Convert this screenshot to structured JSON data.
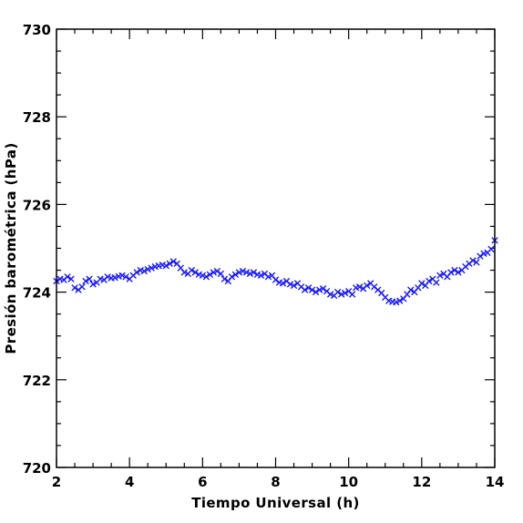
{
  "chart_data": {
    "type": "scatter",
    "xlabel": "Tiempo Universal (h)",
    "ylabel": "Presión barométrica (hPa)",
    "xlim": [
      2,
      14
    ],
    "ylim": [
      720,
      730
    ],
    "x_major_ticks": [
      2,
      4,
      6,
      8,
      10,
      12,
      14
    ],
    "y_major_ticks": [
      720,
      722,
      724,
      726,
      728,
      730
    ],
    "x_minor_step": 0.5,
    "y_minor_step": 0.5,
    "grid": false,
    "marker": "x",
    "marker_color": "#1a1aff",
    "series": [
      {
        "values_xy": [
          [
            2.0,
            724.25
          ],
          [
            2.1,
            724.3
          ],
          [
            2.2,
            724.28
          ],
          [
            2.3,
            724.35
          ],
          [
            2.4,
            724.3
          ],
          [
            2.5,
            724.1
          ],
          [
            2.6,
            724.05
          ],
          [
            2.7,
            724.12
          ],
          [
            2.8,
            724.25
          ],
          [
            2.9,
            724.3
          ],
          [
            3.0,
            724.18
          ],
          [
            3.1,
            724.22
          ],
          [
            3.2,
            724.3
          ],
          [
            3.3,
            724.28
          ],
          [
            3.4,
            724.35
          ],
          [
            3.5,
            724.32
          ],
          [
            3.6,
            724.33
          ],
          [
            3.7,
            724.36
          ],
          [
            3.8,
            724.38
          ],
          [
            3.9,
            724.35
          ],
          [
            4.0,
            724.3
          ],
          [
            4.1,
            724.38
          ],
          [
            4.2,
            724.45
          ],
          [
            4.3,
            724.5
          ],
          [
            4.4,
            724.48
          ],
          [
            4.5,
            724.52
          ],
          [
            4.6,
            724.55
          ],
          [
            4.7,
            724.58
          ],
          [
            4.8,
            724.6
          ],
          [
            4.9,
            724.62
          ],
          [
            5.0,
            724.6
          ],
          [
            5.1,
            724.65
          ],
          [
            5.2,
            724.7
          ],
          [
            5.3,
            724.65
          ],
          [
            5.4,
            724.55
          ],
          [
            5.5,
            724.45
          ],
          [
            5.6,
            724.42
          ],
          [
            5.7,
            724.5
          ],
          [
            5.8,
            724.45
          ],
          [
            5.9,
            724.4
          ],
          [
            6.0,
            724.38
          ],
          [
            6.1,
            724.35
          ],
          [
            6.2,
            724.4
          ],
          [
            6.3,
            724.45
          ],
          [
            6.4,
            724.48
          ],
          [
            6.5,
            724.42
          ],
          [
            6.6,
            724.3
          ],
          [
            6.7,
            724.25
          ],
          [
            6.8,
            724.35
          ],
          [
            6.9,
            724.4
          ],
          [
            7.0,
            724.45
          ],
          [
            7.1,
            724.48
          ],
          [
            7.2,
            724.45
          ],
          [
            7.3,
            724.42
          ],
          [
            7.4,
            724.45
          ],
          [
            7.5,
            724.4
          ],
          [
            7.6,
            724.38
          ],
          [
            7.7,
            724.42
          ],
          [
            7.8,
            724.35
          ],
          [
            7.9,
            724.38
          ],
          [
            8.0,
            724.28
          ],
          [
            8.1,
            724.22
          ],
          [
            8.2,
            724.2
          ],
          [
            8.3,
            724.25
          ],
          [
            8.4,
            724.18
          ],
          [
            8.5,
            724.15
          ],
          [
            8.6,
            724.2
          ],
          [
            8.7,
            724.12
          ],
          [
            8.8,
            724.05
          ],
          [
            8.9,
            724.1
          ],
          [
            9.0,
            724.05
          ],
          [
            9.1,
            724.0
          ],
          [
            9.2,
            724.05
          ],
          [
            9.3,
            724.08
          ],
          [
            9.4,
            724.02
          ],
          [
            9.5,
            723.95
          ],
          [
            9.6,
            723.92
          ],
          [
            9.7,
            724.0
          ],
          [
            9.8,
            723.95
          ],
          [
            9.9,
            723.98
          ],
          [
            10.0,
            724.02
          ],
          [
            10.1,
            723.95
          ],
          [
            10.2,
            724.1
          ],
          [
            10.3,
            724.12
          ],
          [
            10.4,
            724.08
          ],
          [
            10.5,
            724.15
          ],
          [
            10.6,
            724.2
          ],
          [
            10.7,
            724.12
          ],
          [
            10.8,
            724.05
          ],
          [
            10.9,
            723.98
          ],
          [
            11.0,
            723.88
          ],
          [
            11.1,
            723.8
          ],
          [
            11.2,
            723.78
          ],
          [
            11.3,
            723.77
          ],
          [
            11.4,
            723.8
          ],
          [
            11.5,
            723.85
          ],
          [
            11.6,
            723.95
          ],
          [
            11.7,
            724.05
          ],
          [
            11.8,
            724.0
          ],
          [
            11.9,
            724.1
          ],
          [
            12.0,
            724.2
          ],
          [
            12.1,
            724.15
          ],
          [
            12.2,
            724.25
          ],
          [
            12.3,
            724.3
          ],
          [
            12.4,
            724.22
          ],
          [
            12.5,
            724.38
          ],
          [
            12.6,
            724.42
          ],
          [
            12.7,
            724.35
          ],
          [
            12.8,
            724.45
          ],
          [
            12.9,
            724.5
          ],
          [
            13.0,
            724.45
          ],
          [
            13.1,
            724.5
          ],
          [
            13.2,
            724.58
          ],
          [
            13.3,
            724.65
          ],
          [
            13.4,
            724.72
          ],
          [
            13.5,
            724.68
          ],
          [
            13.6,
            724.82
          ],
          [
            13.7,
            724.88
          ],
          [
            13.8,
            724.9
          ],
          [
            13.9,
            724.98
          ],
          [
            14.0,
            725.18
          ]
        ]
      }
    ]
  }
}
